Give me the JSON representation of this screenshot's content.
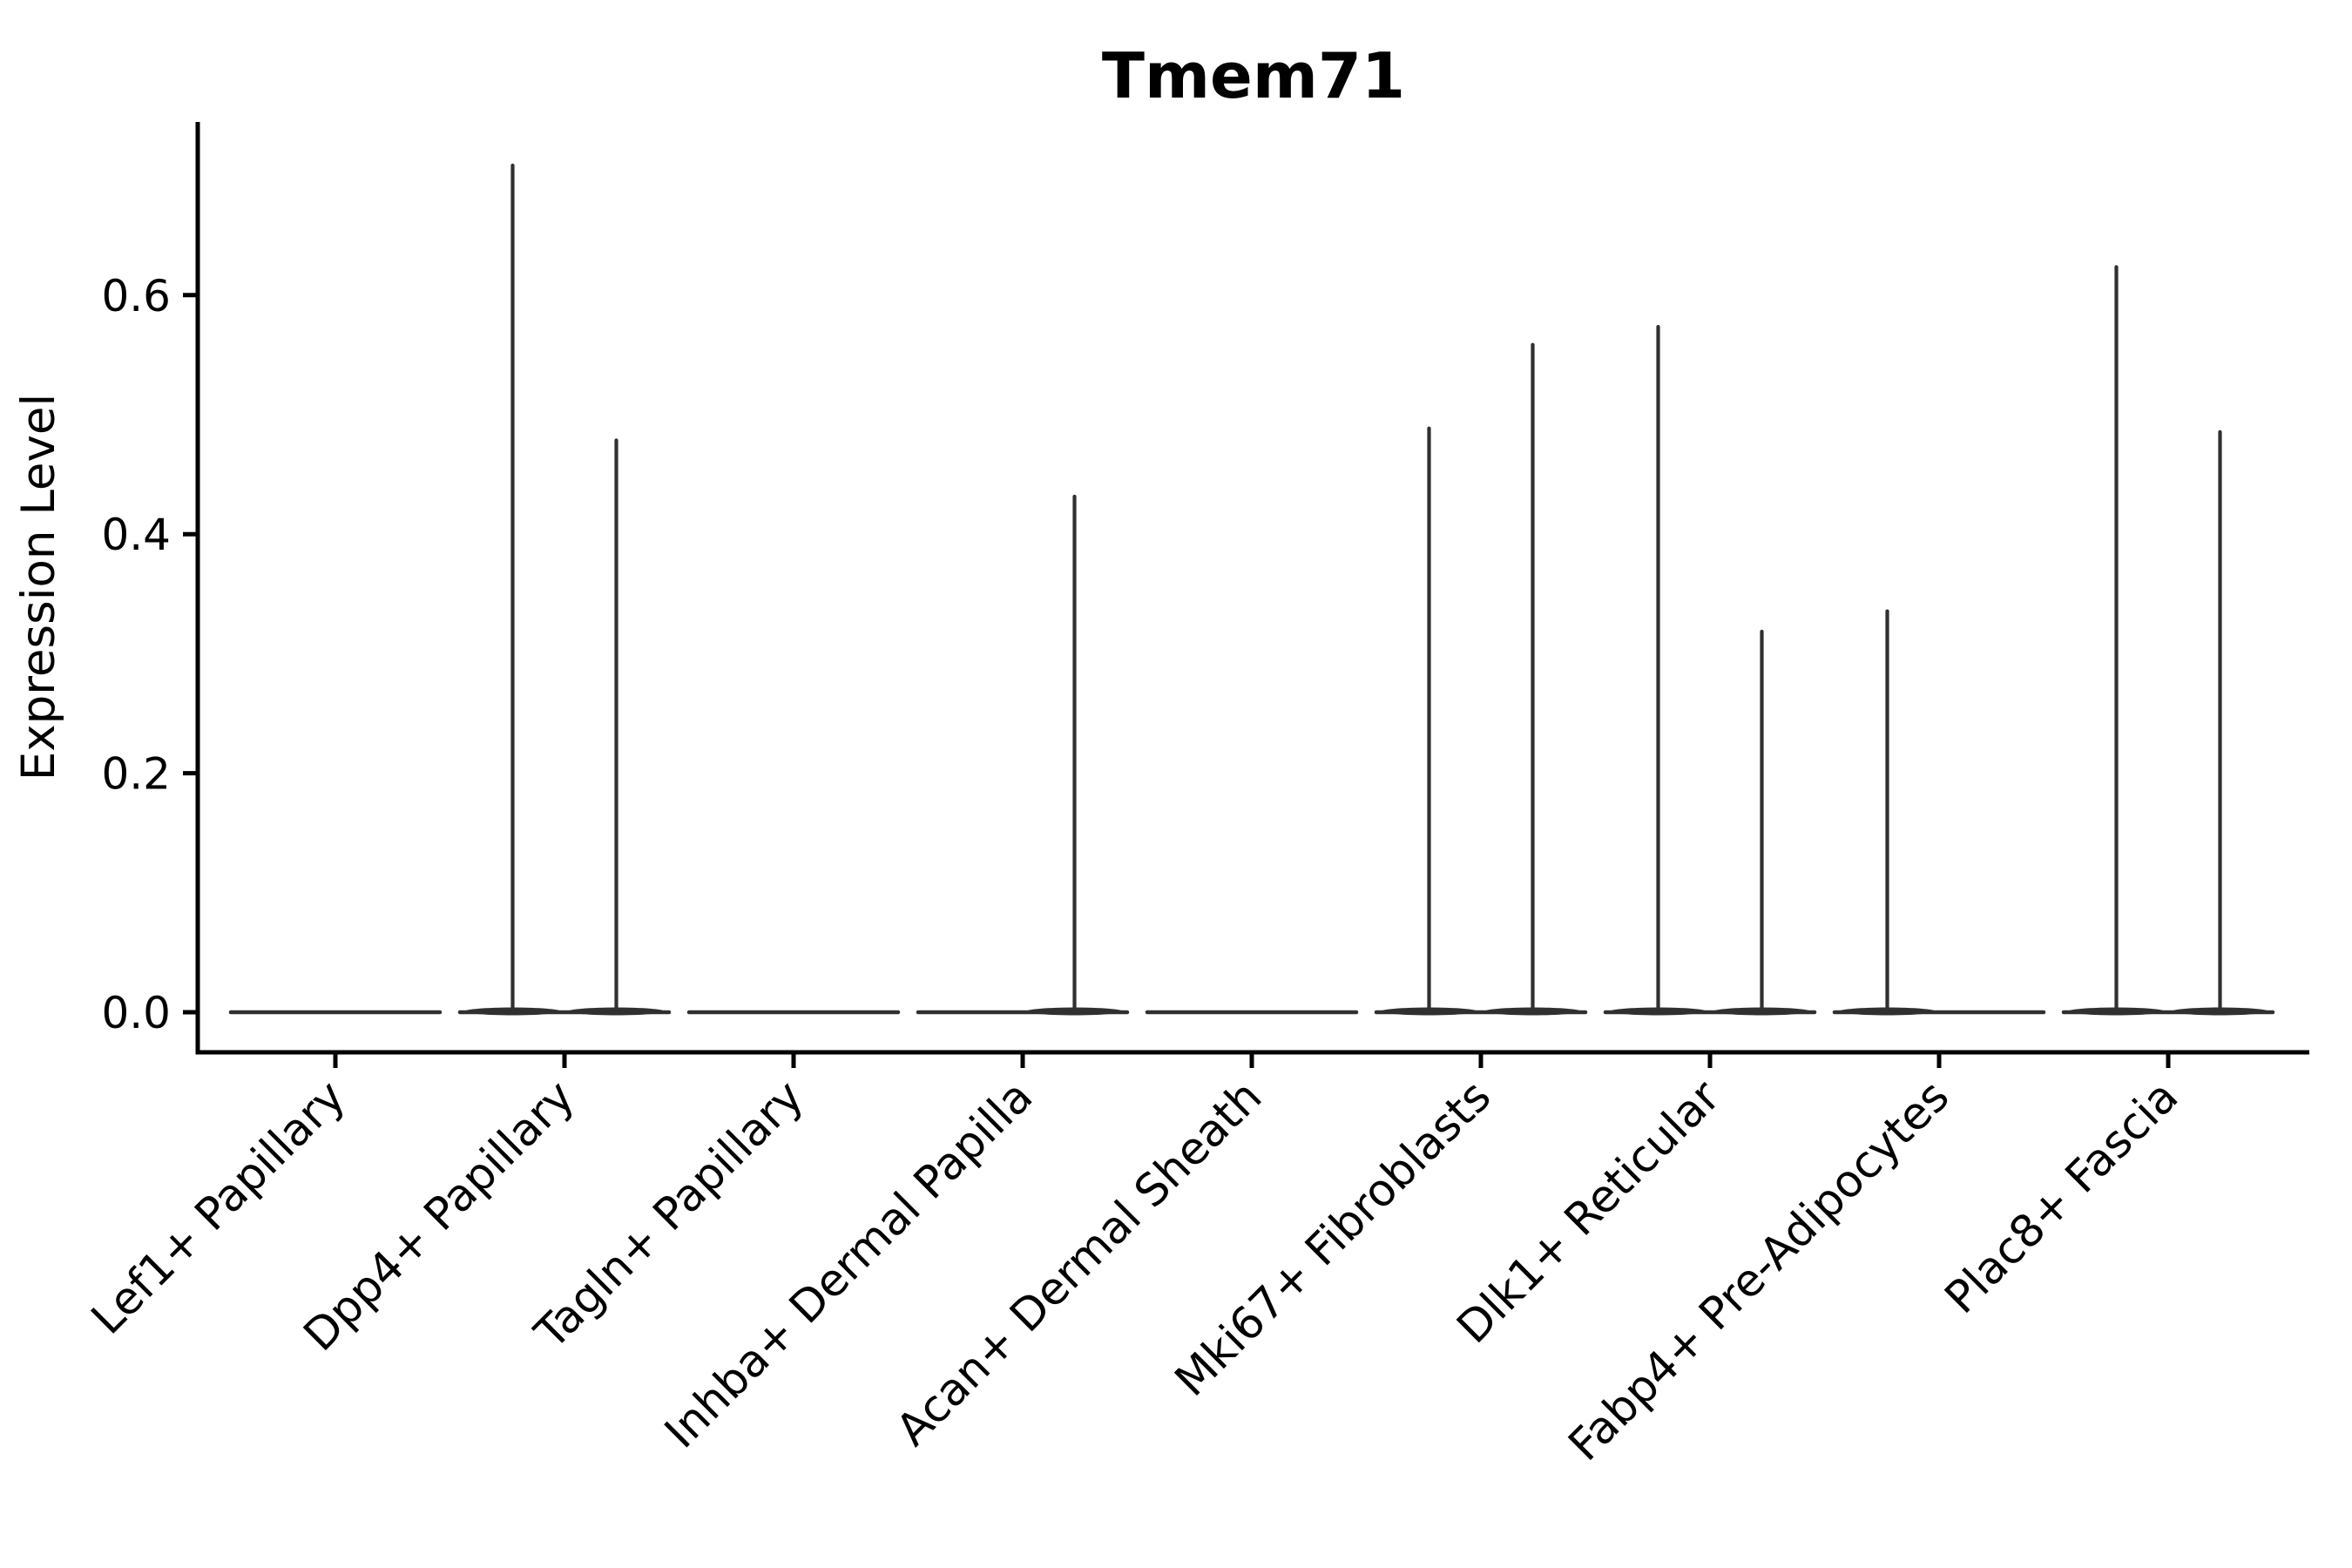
{
  "chart_data": {
    "type": "violin",
    "title": "Tmem71",
    "xlabel": "",
    "ylabel": "Expression Level",
    "yticks": [
      0.0,
      0.2,
      0.4,
      0.6
    ],
    "ylim": [
      -0.034,
      0.745
    ],
    "grid": false,
    "legend": "none",
    "style_note": "Violins collapsed to a flat line at 0 expression with thin density spikes up to max expression; two grouped violins per category (left/right), no fill, dark-gray outline.",
    "categories": [
      "Lef1+ Papillary",
      "Dpp4+ Papillary",
      "Tagln+ Papillary",
      "Inhba+ Dermal Papilla",
      "Acan+ Dermal Sheath",
      "Mki67+ Fibroblasts",
      "Dlk1+ Reticular",
      "Fabp4+ Pre-Adipocytes",
      "Plac8+ Fascia"
    ],
    "series": [
      {
        "name": "left-violin",
        "baseline_value": 0.0,
        "max_expression": [
          0,
          0.71,
          0,
          0,
          0,
          0.49,
          0.575,
          0.337,
          0.625
        ]
      },
      {
        "name": "right-violin",
        "baseline_value": 0.0,
        "max_expression": [
          0,
          0.48,
          0,
          0.433,
          0,
          0.56,
          0.32,
          0,
          0.487
        ]
      }
    ],
    "violin_color": "#303030",
    "axis_color": "#000000",
    "background_color": "#ffffff"
  }
}
